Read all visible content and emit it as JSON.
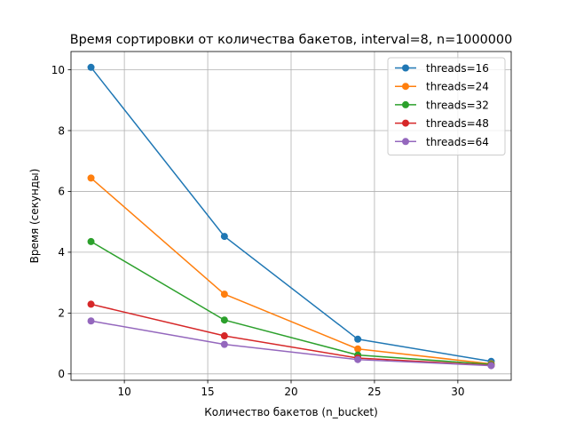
{
  "chart_data": {
    "type": "line",
    "title": "Время сортировки от количества бакетов, interval=8, n=1000000",
    "xlabel": "Количество бакетов (n_bucket)",
    "ylabel": "Время (секунды)",
    "x": [
      8,
      16,
      24,
      32
    ],
    "xlim": [
      6.8,
      33.2
    ],
    "ylim": [
      -0.21,
      10.6
    ],
    "xticks": [
      10,
      15,
      20,
      25,
      30
    ],
    "yticks": [
      0,
      2,
      4,
      6,
      8,
      10
    ],
    "grid": true,
    "legend_position": "top-right",
    "series": [
      {
        "name": "threads=16",
        "color": "#1f77b4",
        "values": [
          10.08,
          4.52,
          1.14,
          0.41
        ]
      },
      {
        "name": "threads=24",
        "color": "#ff7f0e",
        "values": [
          6.44,
          2.62,
          0.82,
          0.33
        ]
      },
      {
        "name": "threads=32",
        "color": "#2ca02c",
        "values": [
          4.35,
          1.77,
          0.62,
          0.31
        ]
      },
      {
        "name": "threads=48",
        "color": "#d62728",
        "values": [
          2.29,
          1.25,
          0.52,
          0.28
        ]
      },
      {
        "name": "threads=64",
        "color": "#9467bd",
        "values": [
          1.74,
          0.97,
          0.47,
          0.27
        ]
      }
    ]
  }
}
